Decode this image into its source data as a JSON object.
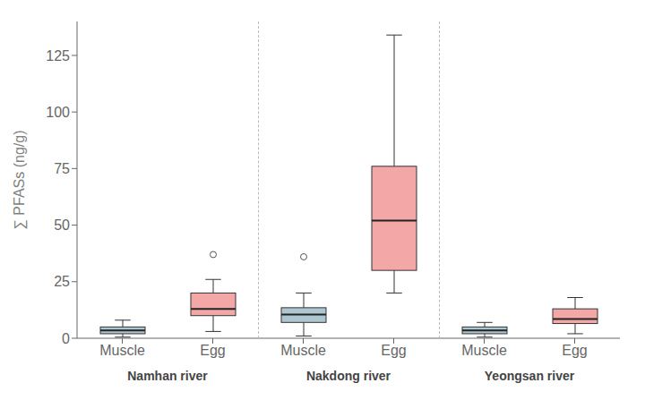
{
  "chart_data": {
    "type": "box",
    "ylabel": "∑ PFASs (ng/g)",
    "ylim": [
      0,
      140
    ],
    "yticks": [
      0,
      25,
      50,
      75,
      100,
      125
    ],
    "grid": false,
    "categories": [
      "Muscle",
      "Egg",
      "Muscle",
      "Egg",
      "Muscle",
      "Egg"
    ],
    "group_labels": [
      "Namhan river",
      "Nakdong river",
      "Yeongsan river"
    ],
    "whislo": [
      0.5,
      3.0,
      1.0,
      20.0,
      0.5,
      2.0
    ],
    "q1": [
      2.0,
      10.0,
      7.0,
      30.0,
      2.0,
      6.5
    ],
    "med": [
      3.5,
      13.0,
      10.5,
      52.0,
      3.5,
      8.5
    ],
    "q3": [
      5.0,
      20.0,
      13.5,
      76.0,
      5.0,
      13.0
    ],
    "whishi": [
      8.0,
      26.0,
      20.0,
      134.0,
      7.0,
      18.0
    ],
    "fliers": [
      [],
      [
        37.0
      ],
      [
        36.0
      ],
      [],
      [],
      []
    ],
    "colors": [
      "#aec6cf",
      "#f4a7a7",
      "#aec6cf",
      "#f4a7a7",
      "#aec6cf",
      "#f4a7a7"
    ]
  }
}
